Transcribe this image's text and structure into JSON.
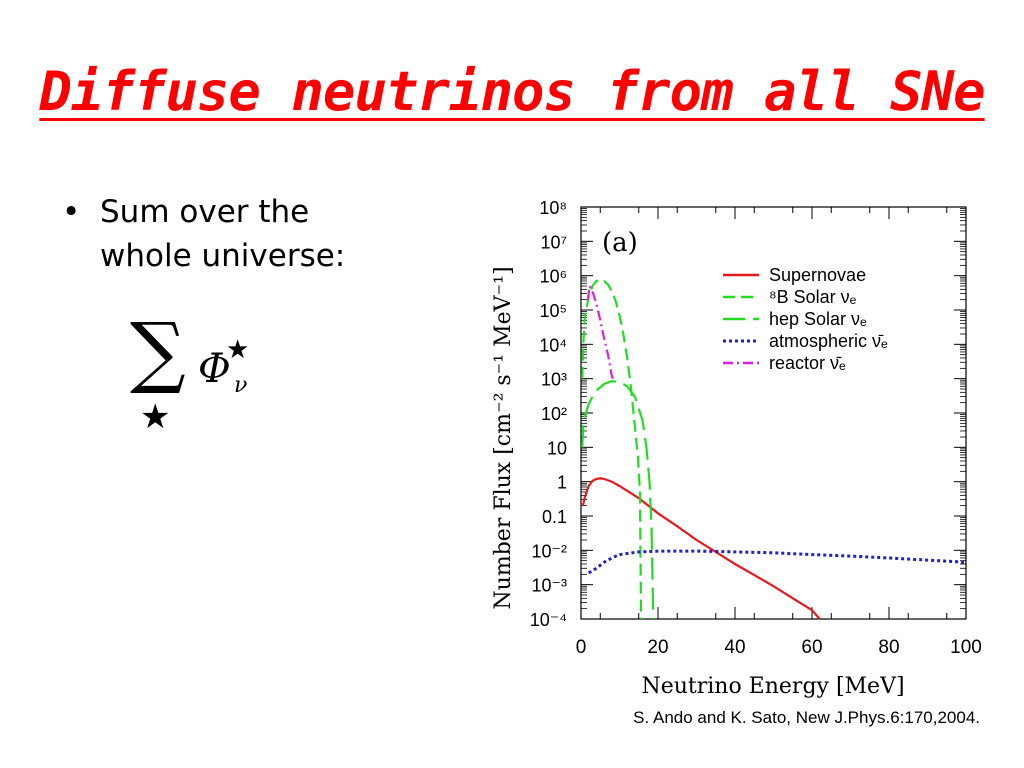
{
  "slide": {
    "title": "Diffuse neutrinos from all SNe",
    "bullet": "Sum over the whole universe:",
    "bullet_symbol": "•",
    "formula": {
      "sum_symbol": "∑",
      "sub_star": "★",
      "phi": "Φ",
      "sup_star": "★",
      "nu": "ν"
    },
    "citation": "S. Ando and K. Sato, New J.Phys.6:170,2004."
  },
  "chart_data": {
    "type": "line",
    "panel_label": "(a)",
    "xlabel": "Neutrino Energy [MeV]",
    "ylabel": "Number Flux [cm⁻² s⁻¹ MeV⁻¹]",
    "xlim": [
      0,
      100
    ],
    "ylim": [
      0.0001,
      100000000
    ],
    "y_scale": "log",
    "x_ticks": [
      0,
      20,
      40,
      60,
      80,
      100
    ],
    "x_tick_labels": [
      "0",
      "20",
      "40",
      "60",
      "80",
      "100"
    ],
    "y_ticks": [
      0.0001,
      0.001,
      0.01,
      0.1,
      1,
      10,
      100,
      1000,
      10000,
      100000,
      1000000,
      10000000,
      100000000
    ],
    "y_tick_labels": [
      "10⁻⁴",
      "10⁻³",
      "10⁻²",
      "0.1",
      "1",
      "10",
      "10²",
      "10³",
      "10⁴",
      "10⁵",
      "10⁶",
      "10⁷",
      "10⁸"
    ],
    "legend_position": "top-right",
    "series": [
      {
        "name": "Supernovae",
        "color": "#e41a1c",
        "style": "solid",
        "x": [
          0.5,
          1,
          2,
          3,
          4,
          5,
          6,
          8,
          10,
          15,
          20,
          25,
          30,
          35,
          40,
          45,
          50,
          55,
          60,
          62
        ],
        "y": [
          0.2,
          0.35,
          0.75,
          1.05,
          1.2,
          1.25,
          1.2,
          1.0,
          0.75,
          0.33,
          0.12,
          0.05,
          0.02,
          0.009,
          0.004,
          0.0019,
          0.0009,
          0.0004,
          0.00018,
          0.0001
        ]
      },
      {
        "name": "⁸B Solar νₑ",
        "color": "#22dd22",
        "style": "dashed",
        "x": [
          0.3,
          0.6,
          1,
          2,
          3,
          4,
          5,
          6,
          7,
          8,
          9,
          10,
          11,
          12,
          13,
          14,
          14.8,
          15.3,
          15.6
        ],
        "y": [
          1000,
          10000,
          60000,
          250000,
          500000,
          700000,
          750000,
          700000,
          550000,
          350000,
          180000,
          70000,
          20000,
          4000,
          500,
          40,
          5,
          0.5,
          0.0001
        ]
      },
      {
        "name": "hep Solar νₑ",
        "color": "#22dd22",
        "style": "long-dash",
        "x": [
          0.3,
          0.6,
          1,
          2,
          3,
          4,
          6,
          8,
          10,
          12,
          14,
          16,
          17,
          17.8,
          18.3,
          18.6,
          18.8
        ],
        "y": [
          10,
          40,
          80,
          180,
          300,
          450,
          700,
          850,
          800,
          600,
          300,
          60,
          10,
          1,
          0.05,
          0.001,
          0.0001
        ]
      },
      {
        "name": "atmospheric ν̄ₑ",
        "color": "#1f1fd0",
        "style": "dotted",
        "x": [
          2,
          4,
          6,
          8,
          10,
          15,
          20,
          30,
          40,
          50,
          60,
          70,
          80,
          90,
          100
        ],
        "y": [
          0.0022,
          0.003,
          0.0045,
          0.006,
          0.0075,
          0.009,
          0.0095,
          0.0095,
          0.009,
          0.0085,
          0.0075,
          0.0068,
          0.006,
          0.0052,
          0.0045
        ]
      },
      {
        "name": "reactor ν̄ₑ",
        "color": "#dd22dd",
        "style": "dash-dot",
        "x": [
          1.8,
          2.2,
          3,
          4,
          5,
          6,
          7,
          8,
          8.3
        ],
        "y": [
          200000,
          500000,
          350000,
          150000,
          50000,
          15000,
          5000,
          1200,
          1000
        ]
      }
    ]
  }
}
